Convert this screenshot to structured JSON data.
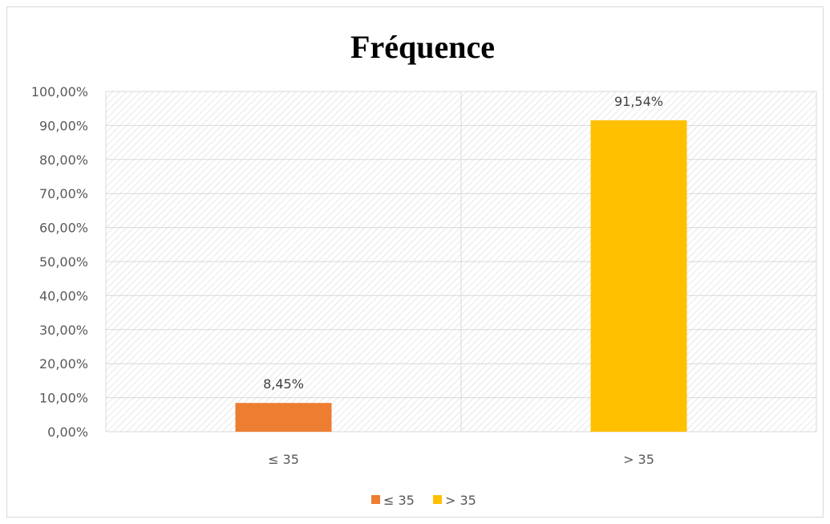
{
  "chart_data": {
    "type": "bar",
    "title": "Fréquence",
    "xlabel": "",
    "ylabel": "",
    "categories": [
      "≤ 35",
      "> 35"
    ],
    "values": [
      8.45,
      91.54
    ],
    "data_labels": [
      "8,45%",
      "91,54%"
    ],
    "colors": [
      "#ED7D31",
      "#FFC000"
    ],
    "ylim": [
      0,
      100
    ],
    "y_ticks": [
      0,
      10,
      20,
      30,
      40,
      50,
      60,
      70,
      80,
      90,
      100
    ],
    "y_tick_labels": [
      "0,00%",
      "10,00%",
      "20,00%",
      "30,00%",
      "40,00%",
      "50,00%",
      "60,00%",
      "70,00%",
      "80,00%",
      "90,00%",
      "100,00%"
    ],
    "grid": true,
    "plot_area_pattern": "diagonal-hatch",
    "legend": {
      "position": "bottom",
      "entries": [
        {
          "label": "≤ 35",
          "color": "#ED7D31"
        },
        {
          "label": "> 35",
          "color": "#FFC000"
        }
      ]
    }
  }
}
